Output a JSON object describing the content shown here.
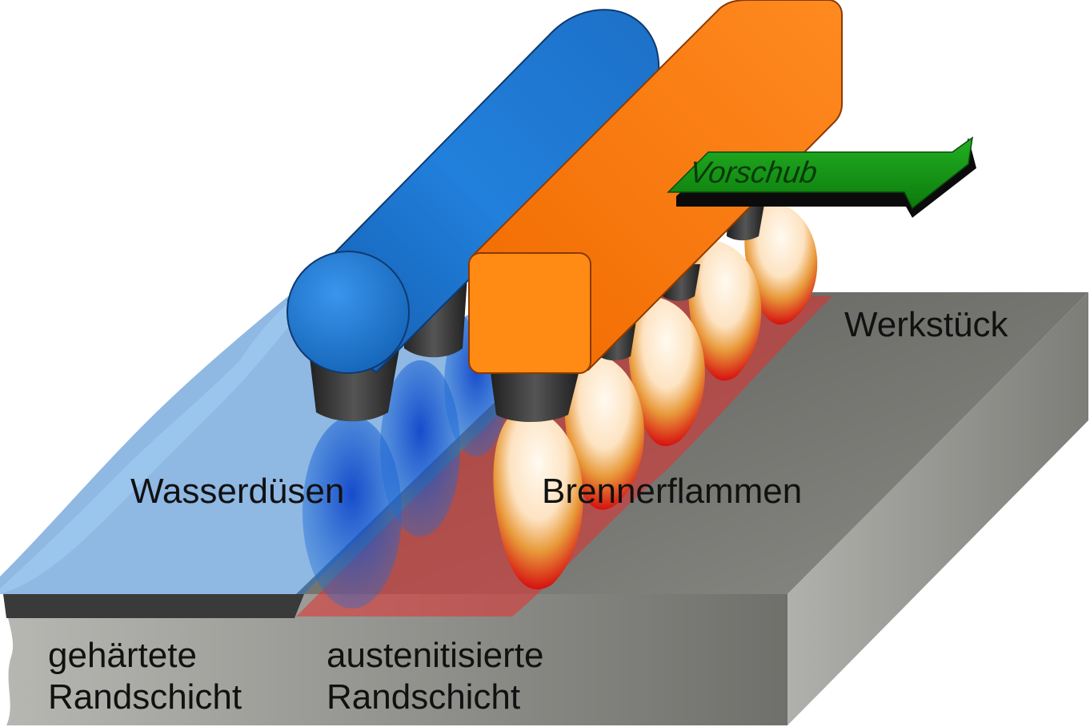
{
  "labels": {
    "workpiece": "Werkstück",
    "water_nozzles": "Wasserdüsen",
    "burner_flames": "Brennerflammen",
    "feed": "Vorschub",
    "hardened_line1": "gehärtete",
    "hardened_line2": "Randschicht",
    "austenitized_line1": "austenitisierte",
    "austenitized_line2": "Randschicht"
  },
  "colors": {
    "water_pipe": "#1f78d6",
    "burner_bar": "#ff7a10",
    "feed_arrow": "#1a9e1a",
    "workpiece_top": "#6f706b",
    "workpiece_front": "#9a9b96",
    "workpiece_side": "#8d8e89",
    "flame_red": "#e01010",
    "flame_core": "#fff4e0",
    "nozzle": "#2b2b2b"
  },
  "icons": {
    "feed_arrow": "right-arrow-icon",
    "water_nozzle": "nozzle-icon",
    "burner_nozzle": "nozzle-icon",
    "flame": "flame-icon"
  }
}
